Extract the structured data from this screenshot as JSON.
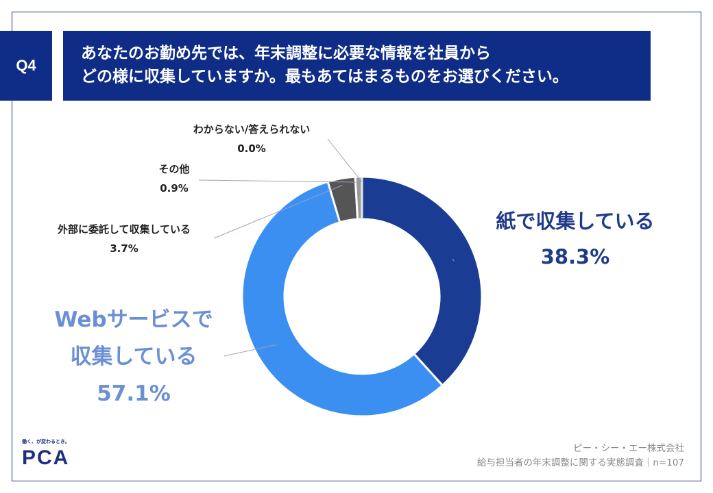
{
  "header": {
    "question_no": "Q4",
    "title_line1": "あなたのお勤め先では、年末調整に必要な情報を社員から",
    "title_line2": "どの様に収集していますか。最もあてはまるものをお選びください。"
  },
  "chart_data": {
    "type": "pie",
    "variant": "donut",
    "title": "あなたのお勤め先では、年末調整に必要な情報を社員からどの様に収集していますか。最もあてはまるものをお選びください。",
    "slices": [
      {
        "label": "紙で収集している",
        "value": 38.3,
        "value_text": "38.3%",
        "color": "#1a3c92"
      },
      {
        "label": "Webサービスで収集している",
        "label_line1": "Webサービスで",
        "label_line2": "収集している",
        "value": 57.1,
        "value_text": "57.1%",
        "color": "#3a8ff0"
      },
      {
        "label": "外部に委託して収集している",
        "value": 3.7,
        "value_text": "3.7%",
        "color": "#555555"
      },
      {
        "label": "その他",
        "value": 0.9,
        "value_text": "0.9%",
        "color": "#9a9a9a"
      },
      {
        "label": "わからない/答えられない",
        "value": 0.0,
        "value_text": "0.0%",
        "color": "#cccccc"
      }
    ]
  },
  "footer": {
    "logo_tagline": "働く、が変わるとき。",
    "logo_text": "PCA",
    "company": "ピー・シー・エー株式会社",
    "survey": "給与担当者の年末調整に関する実態調査｜n=107"
  }
}
